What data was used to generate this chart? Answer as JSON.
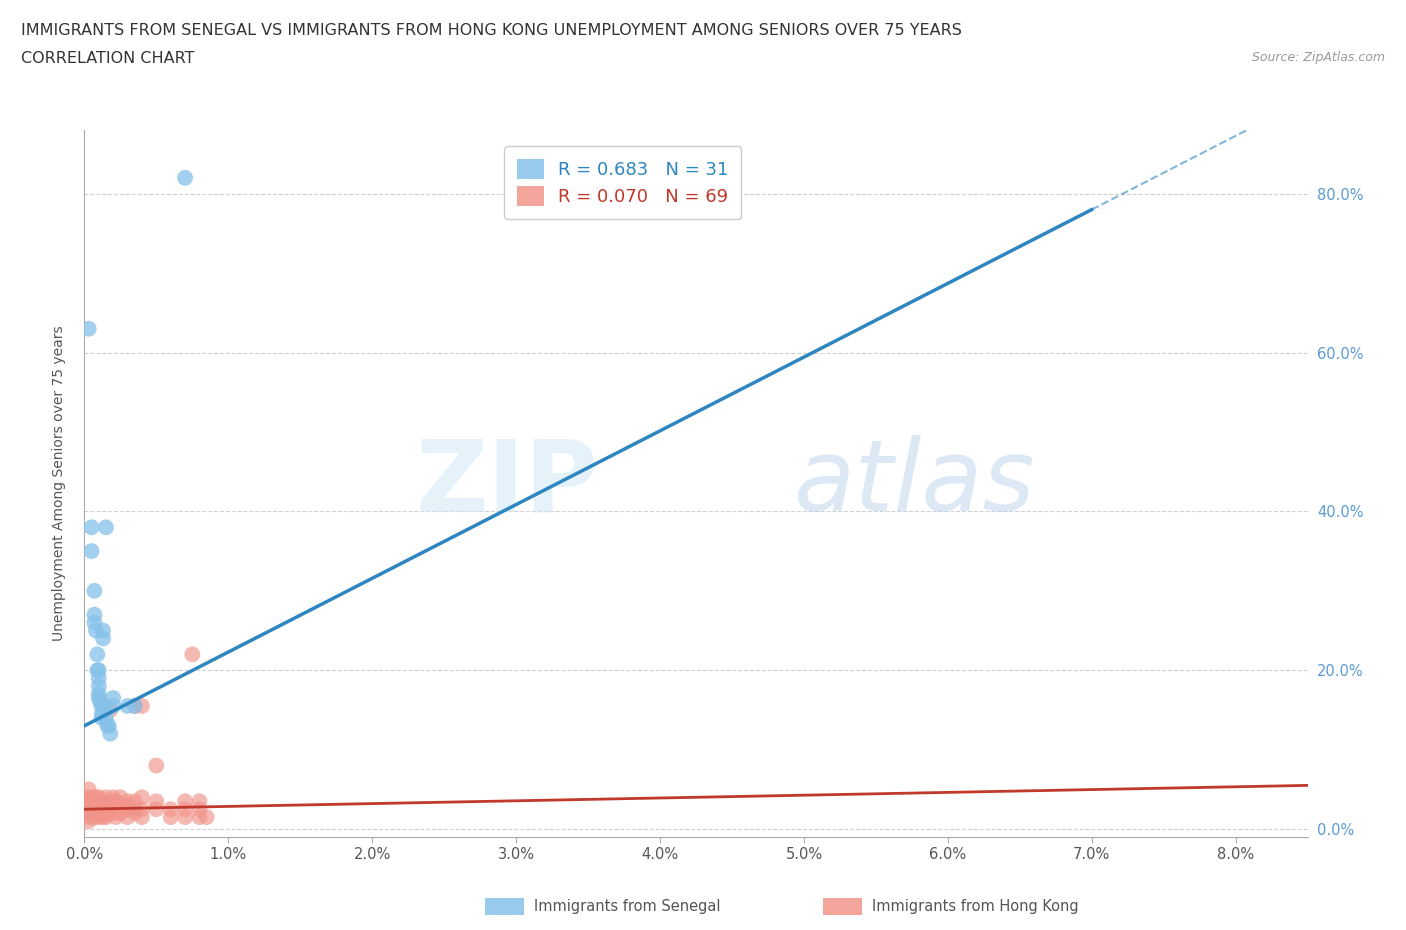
{
  "title_line1": "IMMIGRANTS FROM SENEGAL VS IMMIGRANTS FROM HONG KONG UNEMPLOYMENT AMONG SENIORS OVER 75 YEARS",
  "title_line2": "CORRELATION CHART",
  "source_text": "Source: ZipAtlas.com",
  "ylabel": "Unemployment Among Seniors over 75 years",
  "xlim": [
    0.0,
    0.085
  ],
  "ylim": [
    -0.01,
    0.88
  ],
  "ytick_vals": [
    0.0,
    0.2,
    0.4,
    0.6,
    0.8
  ],
  "ytick_labels": [
    "0.0%",
    "20.0%",
    "40.0%",
    "60.0%",
    "80.0%"
  ],
  "xtick_vals": [
    0.0,
    0.01,
    0.02,
    0.03,
    0.04,
    0.05,
    0.06,
    0.07,
    0.08
  ],
  "xtick_labels": [
    "0.0%",
    "1.0%",
    "2.0%",
    "3.0%",
    "4.0%",
    "5.0%",
    "6.0%",
    "7.0%",
    "8.0%"
  ],
  "legend_senegal": "R = 0.683   N = 31",
  "legend_hongkong": "R = 0.070   N = 69",
  "color_senegal": "#85c1e9",
  "color_hongkong": "#f1948a",
  "color_senegal_line": "#2e86c1",
  "color_hongkong_line": "#c0392b",
  "watermark_zip": "ZIP",
  "watermark_atlas": "atlas",
  "senegal_points": [
    [
      0.0003,
      0.63
    ],
    [
      0.0005,
      0.38
    ],
    [
      0.0005,
      0.35
    ],
    [
      0.0007,
      0.3
    ],
    [
      0.0007,
      0.27
    ],
    [
      0.0007,
      0.26
    ],
    [
      0.0008,
      0.25
    ],
    [
      0.0009,
      0.22
    ],
    [
      0.0009,
      0.2
    ],
    [
      0.001,
      0.2
    ],
    [
      0.001,
      0.19
    ],
    [
      0.001,
      0.18
    ],
    [
      0.001,
      0.17
    ],
    [
      0.001,
      0.165
    ],
    [
      0.0011,
      0.16
    ],
    [
      0.0012,
      0.155
    ],
    [
      0.0012,
      0.145
    ],
    [
      0.0012,
      0.14
    ],
    [
      0.0013,
      0.25
    ],
    [
      0.0013,
      0.24
    ],
    [
      0.0014,
      0.155
    ],
    [
      0.0015,
      0.38
    ],
    [
      0.0015,
      0.14
    ],
    [
      0.0016,
      0.13
    ],
    [
      0.0017,
      0.13
    ],
    [
      0.0018,
      0.12
    ],
    [
      0.002,
      0.165
    ],
    [
      0.002,
      0.155
    ],
    [
      0.007,
      0.82
    ],
    [
      0.0035,
      0.155
    ],
    [
      0.003,
      0.155
    ]
  ],
  "hongkong_points": [
    [
      0.0002,
      0.04
    ],
    [
      0.0002,
      0.02
    ],
    [
      0.0003,
      0.05
    ],
    [
      0.0003,
      0.01
    ],
    [
      0.0004,
      0.03
    ],
    [
      0.0004,
      0.015
    ],
    [
      0.0005,
      0.04
    ],
    [
      0.0005,
      0.025
    ],
    [
      0.0006,
      0.035
    ],
    [
      0.0006,
      0.02
    ],
    [
      0.0007,
      0.03
    ],
    [
      0.0007,
      0.015
    ],
    [
      0.0008,
      0.04
    ],
    [
      0.0008,
      0.025
    ],
    [
      0.0009,
      0.035
    ],
    [
      0.001,
      0.025
    ],
    [
      0.001,
      0.015
    ],
    [
      0.001,
      0.04
    ],
    [
      0.0011,
      0.03
    ],
    [
      0.0011,
      0.02
    ],
    [
      0.0012,
      0.025
    ],
    [
      0.0012,
      0.035
    ],
    [
      0.0013,
      0.025
    ],
    [
      0.0013,
      0.015
    ],
    [
      0.0014,
      0.02
    ],
    [
      0.0014,
      0.03
    ],
    [
      0.0015,
      0.025
    ],
    [
      0.0015,
      0.015
    ],
    [
      0.0015,
      0.04
    ],
    [
      0.0016,
      0.02
    ],
    [
      0.0016,
      0.03
    ],
    [
      0.0018,
      0.025
    ],
    [
      0.0018,
      0.035
    ],
    [
      0.0018,
      0.15
    ],
    [
      0.002,
      0.02
    ],
    [
      0.002,
      0.03
    ],
    [
      0.002,
      0.04
    ],
    [
      0.002,
      0.025
    ],
    [
      0.0022,
      0.025
    ],
    [
      0.0022,
      0.015
    ],
    [
      0.0022,
      0.035
    ],
    [
      0.0025,
      0.02
    ],
    [
      0.0025,
      0.03
    ],
    [
      0.0025,
      0.04
    ],
    [
      0.003,
      0.025
    ],
    [
      0.003,
      0.015
    ],
    [
      0.003,
      0.035
    ],
    [
      0.003,
      0.03
    ],
    [
      0.0035,
      0.025
    ],
    [
      0.0035,
      0.035
    ],
    [
      0.0035,
      0.155
    ],
    [
      0.0035,
      0.02
    ],
    [
      0.004,
      0.025
    ],
    [
      0.004,
      0.015
    ],
    [
      0.004,
      0.04
    ],
    [
      0.004,
      0.155
    ],
    [
      0.005,
      0.025
    ],
    [
      0.005,
      0.035
    ],
    [
      0.005,
      0.08
    ],
    [
      0.006,
      0.025
    ],
    [
      0.006,
      0.015
    ],
    [
      0.007,
      0.025
    ],
    [
      0.007,
      0.035
    ],
    [
      0.007,
      0.015
    ],
    [
      0.0075,
      0.22
    ],
    [
      0.008,
      0.015
    ],
    [
      0.008,
      0.025
    ],
    [
      0.008,
      0.035
    ],
    [
      0.0085,
      0.015
    ]
  ],
  "background_color": "#ffffff",
  "grid_color": "#cccccc"
}
